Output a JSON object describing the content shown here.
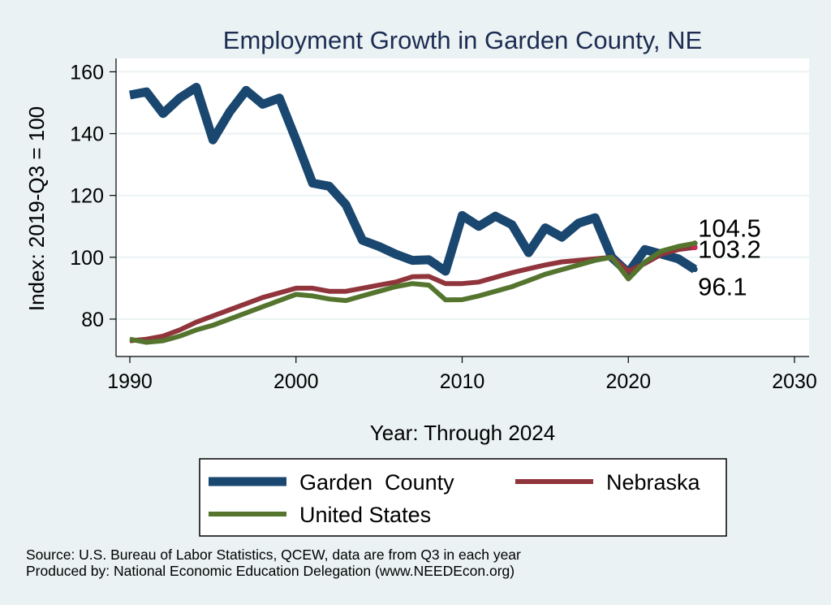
{
  "chart_data": {
    "type": "line",
    "title": "Employment Growth in Garden County, NE",
    "xlabel": "Year: Through 2024",
    "ylabel": "Index: 2019-Q3 = 100",
    "xlim": [
      1990,
      2030
    ],
    "ylim": [
      70,
      163
    ],
    "xticks": [
      1990,
      2000,
      2010,
      2020,
      2030
    ],
    "yticks": [
      80,
      100,
      120,
      140,
      160
    ],
    "grid": true,
    "legend_position": "bottom",
    "series": [
      {
        "name": "Garden  County",
        "color": "#1a476f",
        "x": [
          1990,
          1991,
          1992,
          1993,
          1994,
          1995,
          1996,
          1997,
          1998,
          1999,
          2000,
          2001,
          2002,
          2003,
          2004,
          2005,
          2006,
          2007,
          2008,
          2009,
          2010,
          2011,
          2012,
          2013,
          2014,
          2015,
          2016,
          2017,
          2018,
          2019,
          2020,
          2021,
          2022,
          2023,
          2024
        ],
        "values": [
          152.5,
          153.5,
          146.5,
          151.5,
          155,
          138,
          147,
          154,
          149.5,
          151.5,
          138,
          124,
          123,
          117,
          105.5,
          103.5,
          101,
          99,
          99.2,
          95.5,
          113.5,
          110,
          113.3,
          110.5,
          101.5,
          109.5,
          106.5,
          111,
          112.8,
          100,
          95,
          102.5,
          101,
          99.5,
          96.1
        ],
        "end_label": "96.1"
      },
      {
        "name": "Nebraska",
        "color": "#90353b",
        "x": [
          1990,
          1991,
          1992,
          1993,
          1994,
          1995,
          1996,
          1997,
          1998,
          1999,
          2000,
          2001,
          2002,
          2003,
          2004,
          2005,
          2006,
          2007,
          2008,
          2009,
          2010,
          2011,
          2012,
          2013,
          2014,
          2015,
          2016,
          2017,
          2018,
          2019,
          2020,
          2021,
          2022,
          2023,
          2024
        ],
        "values": [
          73,
          73.5,
          74.5,
          76.5,
          79,
          81,
          83,
          85,
          87,
          88.5,
          90,
          90,
          89,
          89,
          90,
          91,
          92,
          93.7,
          93.8,
          91.5,
          91.5,
          92,
          93.5,
          95,
          96.3,
          97.5,
          98.5,
          99,
          99.5,
          100,
          95.5,
          98,
          101,
          102.5,
          103.2
        ],
        "end_label": "103.2"
      },
      {
        "name": "United States",
        "color": "#55752f",
        "x": [
          1990,
          1991,
          1992,
          1993,
          1994,
          1995,
          1996,
          1997,
          1998,
          1999,
          2000,
          2001,
          2002,
          2003,
          2004,
          2005,
          2006,
          2007,
          2008,
          2009,
          2010,
          2011,
          2012,
          2013,
          2014,
          2015,
          2016,
          2017,
          2018,
          2019,
          2020,
          2021,
          2022,
          2023,
          2024
        ],
        "values": [
          73.5,
          72.5,
          73,
          74.5,
          76.5,
          78,
          80,
          82,
          84,
          86,
          88,
          87.5,
          86.5,
          86,
          87.5,
          89,
          90.5,
          91.5,
          91,
          86.2,
          86.3,
          87.5,
          89,
          90.5,
          92.5,
          94.5,
          96,
          97.5,
          99,
          100,
          93,
          98.5,
          102,
          103.5,
          104.5
        ],
        "end_label": "104.5"
      }
    ]
  },
  "source": "Source: U.S. Bureau of Labor Statistics, QCEW, data are from Q3 in each year",
  "producer": "Produced by: National Economic Education Delegation (www.NEEDEcon.org)",
  "colors": {
    "outer_background": "#eaf2f3",
    "plot_background": "#ffffff",
    "grid": "#eaf2f3",
    "title": "#1c2c52"
  }
}
